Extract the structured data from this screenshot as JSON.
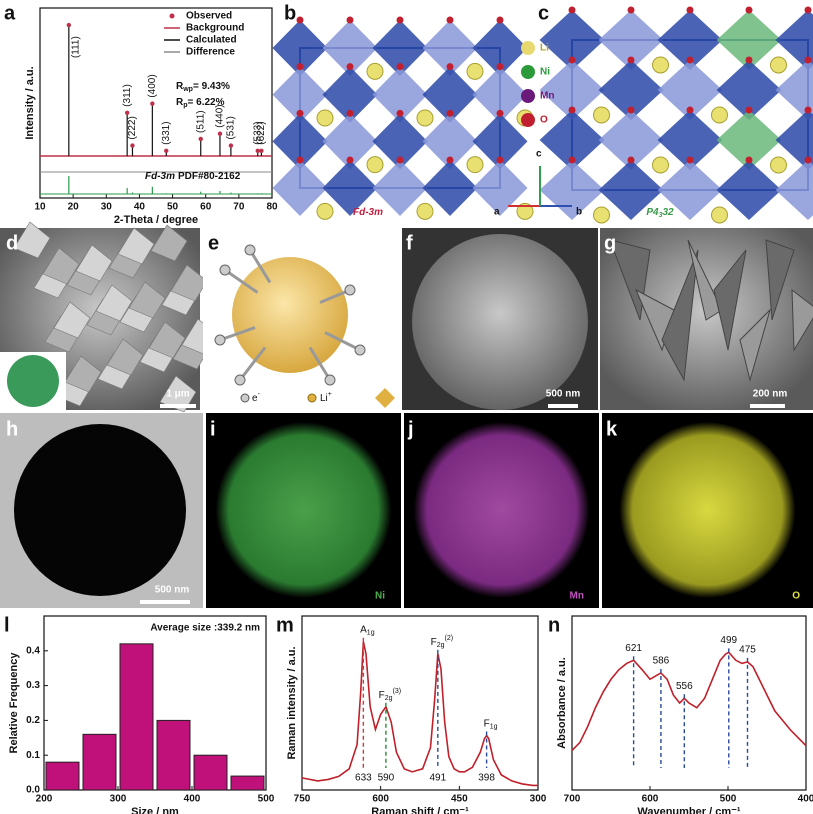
{
  "panel_letters": [
    "a",
    "b",
    "c",
    "d",
    "e",
    "f",
    "g",
    "h",
    "i",
    "j",
    "k",
    "l",
    "m",
    "n"
  ],
  "structures": {
    "b": {
      "space_group": "Fd-3m"
    },
    "c": {
      "space_group": {
        "base": "P4",
        "sub": "3",
        "rest": "32"
      }
    },
    "legend": [
      "Li",
      "Ni",
      "Mn",
      "O"
    ],
    "axes": [
      "a",
      "b",
      "c"
    ]
  },
  "images": {
    "d": {
      "scale_bar": "1 μm"
    },
    "e": {
      "electron": {
        "base": "e",
        "sup": "-"
      },
      "lithium": {
        "base": "Li",
        "sup": "+"
      }
    },
    "f": {
      "scale_bar": "500 nm"
    },
    "g": {
      "scale_bar": "200 nm"
    },
    "h": {
      "scale_bar": "500 nm"
    },
    "i": {
      "element": "Ni"
    },
    "j": {
      "element": "Mn"
    },
    "k": {
      "element": "O"
    }
  },
  "chart_data": [
    {
      "type": "xrd",
      "x_label": "2-Theta / degree",
      "y_label": "Intensity / a.u.",
      "xlim": [
        10,
        80
      ],
      "xticks": [
        10,
        20,
        30,
        40,
        50,
        60,
        70,
        80
      ],
      "ylim": [
        0,
        110
      ],
      "x": [
        18.7,
        36.3,
        37.9,
        43.9,
        48.1,
        58.5,
        64.3,
        67.6,
        75.7,
        76.8
      ],
      "values": [
        100,
        33,
        8,
        40,
        4,
        13,
        17,
        8,
        4,
        4
      ],
      "labels": [
        "(111)",
        "(311)",
        "(222)",
        "(400)",
        "(331)",
        "(511)",
        "(440)",
        "(531)",
        "(533)",
        "(622)"
      ],
      "legend": [
        {
          "name": "Observed",
          "color": "#c0304a"
        },
        {
          "name": "Background",
          "color": "#c0304a"
        },
        {
          "name": "Calculated",
          "color": "#111111"
        },
        {
          "name": "Difference",
          "color": "#8a8a8a"
        }
      ],
      "fit": {
        "rwp": {
          "symbol": "R",
          "sub": "wp",
          "value": "=  9.43%"
        },
        "rp": {
          "symbol": "R",
          "sub": "p",
          "value": "=  6.22%"
        }
      },
      "reference": {
        "phase": "Fd-3m",
        "card": "PDF#80-2162",
        "color": "#2a9a4a"
      }
    },
    {
      "type": "histogram",
      "x_label": "Size / nm",
      "y_label": "Relative Frequency",
      "annotation": "Average size :339.2 nm",
      "bins": [
        200,
        250,
        300,
        350,
        400,
        450,
        500
      ],
      "values": [
        0.08,
        0.16,
        0.42,
        0.2,
        0.1,
        0.04
      ],
      "color": "#c0107a",
      "xlim": [
        200,
        500
      ],
      "xticks": [
        200,
        300,
        400,
        500
      ],
      "ylim": [
        0,
        0.5
      ],
      "yticks": [
        {
          "value": 0,
          "label": "0.0"
        },
        0.1,
        0.2,
        0.3,
        0.4
      ]
    },
    {
      "type": "line",
      "x_label": "Raman shift / cm⁻¹",
      "y_label": "Raman intensity / a.u.",
      "xlim": [
        750,
        300
      ],
      "xticks": [
        750,
        600,
        450,
        300
      ],
      "ylim": [
        0,
        1.15
      ],
      "x": [
        750,
        720,
        700,
        680,
        660,
        645,
        638,
        633,
        628,
        620,
        610,
        600,
        590,
        580,
        570,
        555,
        540,
        520,
        505,
        497,
        491,
        485,
        478,
        470,
        460,
        450,
        440,
        425,
        410,
        402,
        398,
        394,
        385,
        370,
        350,
        330,
        310,
        300
      ],
      "series": [
        {
          "color": "#c0202a",
          "values": [
            0.08,
            0.06,
            0.07,
            0.09,
            0.14,
            0.3,
            0.65,
            0.98,
            0.9,
            0.55,
            0.4,
            0.5,
            0.55,
            0.45,
            0.25,
            0.14,
            0.12,
            0.14,
            0.28,
            0.6,
            0.9,
            0.8,
            0.45,
            0.22,
            0.14,
            0.12,
            0.12,
            0.15,
            0.25,
            0.34,
            0.36,
            0.34,
            0.2,
            0.1,
            0.06,
            0.04,
            0.03,
            0.03
          ]
        }
      ],
      "peaks": [
        {
          "x": 633,
          "color": "#c04040",
          "mode": {
            "base": "A",
            "sub": "1g"
          }
        },
        {
          "x": 590,
          "color": "#2a8a3a",
          "mode": {
            "base": "F",
            "sub": "2g",
            "sup": "(3)"
          }
        },
        {
          "x": 491,
          "color": "#2a4a9a",
          "mode": {
            "base": "F",
            "sub": "2g",
            "sup": "(2)"
          }
        },
        {
          "x": 398,
          "color": "#2a4a9a",
          "mode": {
            "base": "F",
            "sub": "1g"
          }
        }
      ]
    },
    {
      "type": "line",
      "x_label": "Wavenumber / cm⁻¹",
      "y_label": "Absorbance / a.u.",
      "xlim": [
        700,
        400
      ],
      "xticks": [
        700,
        600,
        500,
        400
      ],
      "ylim": [
        0,
        1.1
      ],
      "x": [
        700,
        690,
        680,
        670,
        660,
        650,
        640,
        630,
        621,
        610,
        600,
        593,
        586,
        578,
        570,
        562,
        556,
        550,
        540,
        530,
        520,
        510,
        503,
        499,
        490,
        482,
        475,
        468,
        460,
        450,
        440,
        430,
        420,
        410,
        400
      ],
      "series": [
        {
          "color": "#c0202a",
          "values": [
            0.25,
            0.3,
            0.4,
            0.52,
            0.62,
            0.7,
            0.76,
            0.8,
            0.82,
            0.76,
            0.7,
            0.72,
            0.74,
            0.7,
            0.6,
            0.55,
            0.58,
            0.55,
            0.52,
            0.58,
            0.7,
            0.82,
            0.86,
            0.87,
            0.82,
            0.8,
            0.81,
            0.78,
            0.7,
            0.6,
            0.5,
            0.44,
            0.38,
            0.33,
            0.28
          ]
        }
      ],
      "peaks": [
        {
          "x": 621,
          "color": "#2a4a9a"
        },
        {
          "x": 586,
          "color": "#2a4a9a"
        },
        {
          "x": 556,
          "color": "#2a4a9a"
        },
        {
          "x": 499,
          "color": "#2a4a9a"
        },
        {
          "x": 475,
          "color": "#2a4a9a"
        }
      ]
    }
  ]
}
